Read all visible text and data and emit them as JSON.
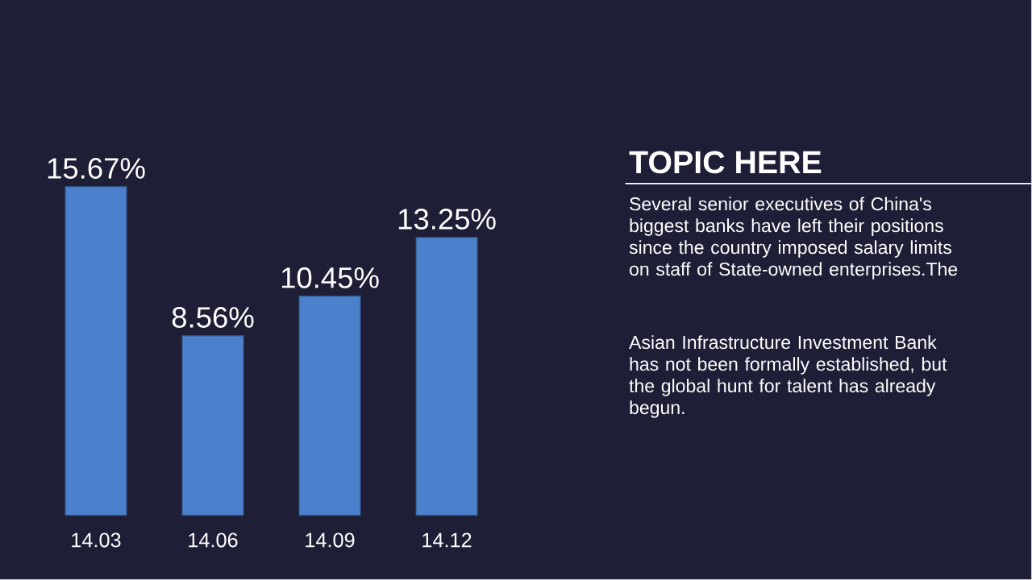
{
  "chart_data": {
    "type": "bar",
    "title": "TOPIC HERE",
    "categories": [
      "14.03",
      "14.06",
      "14.09",
      "14.12"
    ],
    "values": [
      15.67,
      8.56,
      10.45,
      13.25
    ],
    "value_labels": [
      "15.67%",
      "8.56%",
      "10.45%",
      "13.25%"
    ],
    "color": "#4a80cc",
    "annotations": [
      "Several senior executives of China's biggest banks have left their positions since the country imposed salary limits on staff of State-owned enterprises.The",
      "Asian Infrastructure Investment Bank has not been formally established, but the global hunt for talent has already begun."
    ]
  }
}
